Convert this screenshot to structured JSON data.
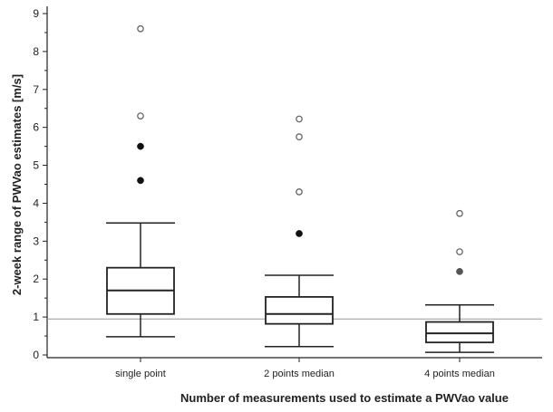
{
  "chart_data": {
    "type": "box",
    "xlabel": "Number of measurements used to estimate a PWVao value",
    "ylabel": "2-week range of PWVao estimates [m/s]",
    "ylim": [
      0,
      9
    ],
    "yticks": [
      "0",
      "1",
      "2",
      "3",
      "4",
      "5",
      "6",
      "7",
      "8",
      "9"
    ],
    "reference_line": 0.95,
    "grid": false,
    "categories": [
      "single point",
      "2 points median",
      "4 points median"
    ],
    "boxes": [
      {
        "category": "single point",
        "whisker_low": 0.48,
        "q1": 1.08,
        "median": 1.7,
        "q3": 2.3,
        "whisker_high": 3.48,
        "outliers_open": [
          6.3,
          8.6
        ],
        "outliers_filled": [
          4.6,
          5.5
        ]
      },
      {
        "category": "2 points median",
        "whisker_low": 0.22,
        "q1": 0.82,
        "median": 1.08,
        "q3": 1.53,
        "whisker_high": 2.1,
        "outliers_open": [
          4.3,
          5.75,
          6.22
        ],
        "outliers_filled": [
          3.2
        ]
      },
      {
        "category": "4 points median",
        "whisker_low": 0.07,
        "q1": 0.33,
        "median": 0.57,
        "q3": 0.87,
        "whisker_high": 1.32,
        "outliers_open": [
          2.72,
          3.73
        ],
        "outliers_filled": [
          2.2
        ]
      }
    ],
    "colors": {
      "line": "#222222",
      "open_outlier": "#666666",
      "filled_outlier_dark": "#111111",
      "filled_outlier_grey": "#555555",
      "reference_line": "#999999"
    }
  }
}
